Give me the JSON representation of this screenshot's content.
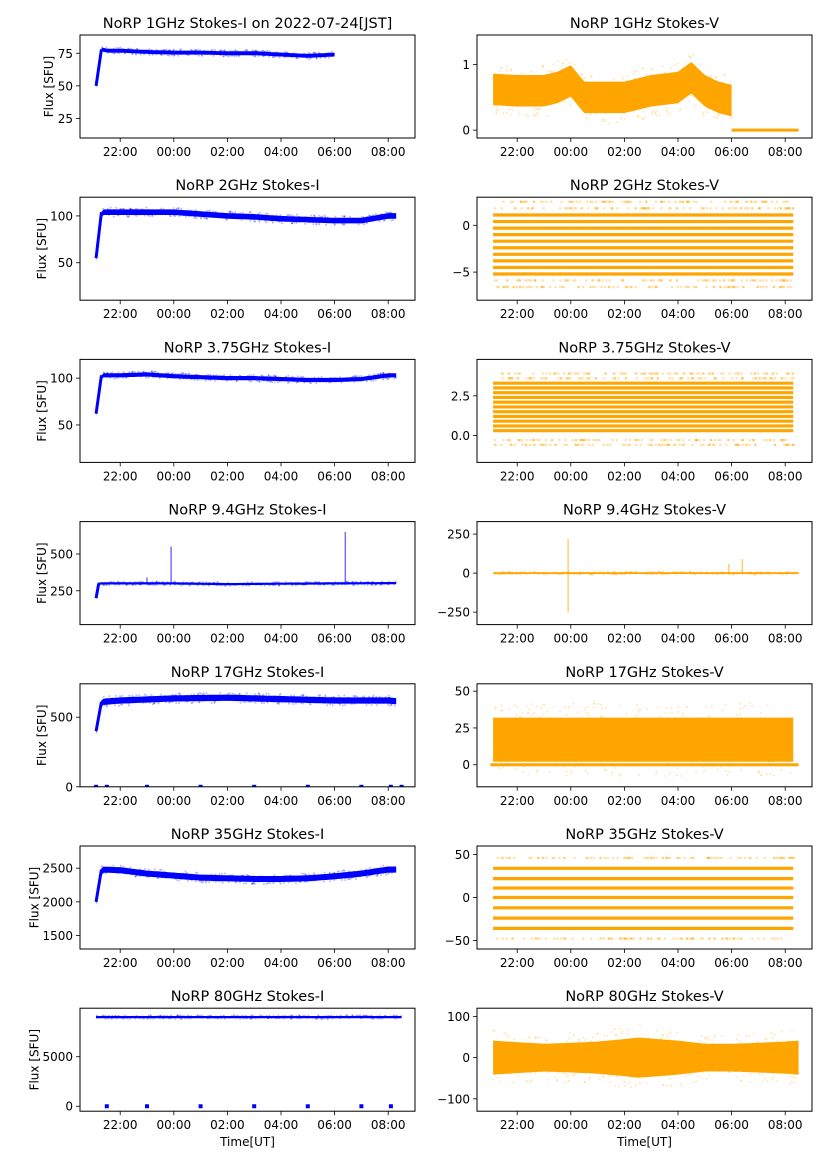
{
  "figure": {
    "colors": {
      "stokes_i": "#0000ff",
      "stokes_v": "#ffa500",
      "axes": "#000000"
    }
  },
  "chart_data": [
    {
      "type": "scatter",
      "title": "NoRP 1GHz Stokes-I on 2022-07-24[JST]",
      "xlabel": "",
      "ylabel": "Flux [SFU]",
      "xlim": [
        20.5,
        33.0
      ],
      "ylim": [
        10,
        89
      ],
      "yticks": [
        25,
        50,
        75
      ],
      "ytick_labels": [
        "25",
        "50",
        "75"
      ],
      "xticks": [
        22,
        24,
        26,
        28,
        30,
        32
      ],
      "xtick_labels": [
        "22:00",
        "00:00",
        "02:00",
        "04:00",
        "06:00",
        "08:00"
      ],
      "series": [
        {
          "name": "Stokes-I",
          "color": "#0000ff",
          "x": [
            21.1,
            21.3,
            21.5,
            22,
            23,
            24,
            25,
            26,
            27,
            28,
            29,
            30
          ],
          "y": [
            50,
            78,
            77,
            77,
            76,
            75.5,
            75.5,
            75,
            75,
            74,
            73,
            74
          ],
          "spread": 2
        }
      ]
    },
    {
      "type": "scatter",
      "title": "NoRP 1GHz Stokes-V",
      "xlabel": "",
      "ylabel": "",
      "xlim": [
        20.5,
        33.0
      ],
      "ylim": [
        -0.12,
        1.45
      ],
      "yticks": [
        0,
        1
      ],
      "ytick_labels": [
        "0",
        "1"
      ],
      "xticks": [
        22,
        24,
        26,
        28,
        30,
        32
      ],
      "xtick_labels": [
        "22:00",
        "00:00",
        "02:00",
        "04:00",
        "06:00",
        "08:00"
      ],
      "series": [
        {
          "name": "Stokes-V",
          "color": "#ffa500",
          "x": [
            21.1,
            22,
            23,
            23.5,
            24,
            24.5,
            25,
            26,
            27,
            28,
            28.5,
            29,
            29.5,
            30
          ],
          "y": [
            0.62,
            0.6,
            0.6,
            0.65,
            0.75,
            0.5,
            0.5,
            0.5,
            0.6,
            0.65,
            0.8,
            0.6,
            0.5,
            0.45
          ],
          "spread": 0.32,
          "zero_x": [
            30.0,
            32.5
          ]
        }
      ]
    },
    {
      "type": "scatter",
      "title": "NoRP 2GHz Stokes-I",
      "xlabel": "",
      "ylabel": "Flux [SFU]",
      "xlim": [
        20.5,
        33.0
      ],
      "ylim": [
        10,
        120
      ],
      "yticks": [
        50,
        100
      ],
      "ytick_labels": [
        "50",
        "100"
      ],
      "xticks": [
        22,
        24,
        26,
        28,
        30,
        32
      ],
      "xtick_labels": [
        "22:00",
        "00:00",
        "02:00",
        "04:00",
        "06:00",
        "08:00"
      ],
      "series": [
        {
          "name": "Stokes-I",
          "color": "#0000ff",
          "x": [
            21.1,
            21.3,
            22,
            23,
            24,
            25,
            26,
            27,
            28,
            29,
            30,
            31,
            32,
            32.3
          ],
          "y": [
            55,
            104,
            104,
            104,
            104,
            102,
            100,
            99,
            97,
            96,
            95,
            95,
            100,
            100
          ],
          "spread": 4
        }
      ]
    },
    {
      "type": "scatter",
      "title": "NoRP 2GHz Stokes-V",
      "xlabel": "",
      "ylabel": "",
      "xlim": [
        20.5,
        33.0
      ],
      "ylim": [
        -8,
        3
      ],
      "yticks": [
        -5,
        0
      ],
      "ytick_labels": [
        "−5",
        "0"
      ],
      "xticks": [
        22,
        24,
        26,
        28,
        30,
        32
      ],
      "xtick_labels": [
        "22:00",
        "00:00",
        "02:00",
        "04:00",
        "06:00",
        "08:00"
      ],
      "series": [
        {
          "name": "Stokes-V",
          "color": "#ffa500",
          "levels": [
            -5.2,
            -4.5,
            -3.8,
            -3.1,
            -2.4,
            -1.7,
            -1.0,
            -0.3,
            0.4,
            1.1
          ],
          "faint_levels": [
            -6.6,
            -5.9,
            1.8,
            2.5
          ],
          "x_range": [
            21.1,
            32.3
          ]
        }
      ]
    },
    {
      "type": "scatter",
      "title": "NoRP 3.75GHz Stokes-I",
      "xlabel": "",
      "ylabel": "Flux [SFU]",
      "xlim": [
        20.5,
        33.0
      ],
      "ylim": [
        10,
        120
      ],
      "yticks": [
        50,
        100
      ],
      "ytick_labels": [
        "50",
        "100"
      ],
      "xticks": [
        22,
        24,
        26,
        28,
        30,
        32
      ],
      "xtick_labels": [
        "22:00",
        "00:00",
        "02:00",
        "04:00",
        "06:00",
        "08:00"
      ],
      "series": [
        {
          "name": "Stokes-I",
          "color": "#0000ff",
          "x": [
            21.1,
            21.3,
            22,
            23,
            24,
            25,
            26,
            27,
            28,
            29,
            30,
            31,
            32,
            32.3
          ],
          "y": [
            62,
            103,
            103,
            104,
            102,
            101,
            100,
            100,
            99,
            98,
            98,
            99,
            103,
            103
          ],
          "spread": 3
        }
      ]
    },
    {
      "type": "scatter",
      "title": "NoRP 3.75GHz Stokes-V",
      "xlabel": "",
      "ylabel": "",
      "xlim": [
        20.5,
        33.0
      ],
      "ylim": [
        -1.7,
        4.8
      ],
      "yticks": [
        0.0,
        2.5
      ],
      "ytick_labels": [
        "0.0",
        "2.5"
      ],
      "xticks": [
        22,
        24,
        26,
        28,
        30,
        32
      ],
      "xtick_labels": [
        "22:00",
        "00:00",
        "02:00",
        "04:00",
        "06:00",
        "08:00"
      ],
      "series": [
        {
          "name": "Stokes-V",
          "color": "#ffa500",
          "levels": [
            0.3,
            0.6,
            0.9,
            1.2,
            1.5,
            1.8,
            2.1,
            2.4,
            2.7,
            3.0,
            3.3
          ],
          "faint_levels": [
            -0.3,
            -0.6,
            3.6,
            3.9
          ],
          "x_range": [
            21.1,
            32.3
          ]
        }
      ]
    },
    {
      "type": "scatter",
      "title": "NoRP 9.4GHz Stokes-I",
      "xlabel": "",
      "ylabel": "Flux [SFU]",
      "xlim": [
        20.5,
        33.0
      ],
      "ylim": [
        20,
        720
      ],
      "yticks": [
        250,
        500
      ],
      "ytick_labels": [
        "250",
        "500"
      ],
      "xticks": [
        22,
        24,
        26,
        28,
        30,
        32
      ],
      "xtick_labels": [
        "22:00",
        "00:00",
        "02:00",
        "04:00",
        "06:00",
        "08:00"
      ],
      "series": [
        {
          "name": "Stokes-I",
          "color": "#0000ff",
          "x": [
            21.1,
            21.2,
            22,
            24,
            26,
            28,
            30,
            32,
            32.3
          ],
          "y": [
            200,
            300,
            300,
            300,
            295,
            298,
            300,
            302,
            302
          ],
          "spread": 10,
          "spikes": [
            [
              23.9,
              550
            ],
            [
              30.4,
              650
            ],
            [
              23.0,
              340
            ]
          ]
        }
      ]
    },
    {
      "type": "scatter",
      "title": "NoRP 9.4GHz Stokes-V",
      "xlabel": "",
      "ylabel": "",
      "xlim": [
        20.5,
        33.0
      ],
      "ylim": [
        -330,
        330
      ],
      "yticks": [
        -250,
        0,
        250
      ],
      "ytick_labels": [
        "−250",
        "0",
        "250"
      ],
      "xticks": [
        22,
        24,
        26,
        28,
        30,
        32
      ],
      "xtick_labels": [
        "22:00",
        "00:00",
        "02:00",
        "04:00",
        "06:00",
        "08:00"
      ],
      "series": [
        {
          "name": "Stokes-V",
          "color": "#ffa500",
          "x": [
            21.1,
            32.5
          ],
          "y": [
            0,
            0
          ],
          "spread": 8,
          "spikes": [
            [
              23.9,
              220
            ],
            [
              23.9,
              -250
            ],
            [
              29.9,
              60
            ],
            [
              30.4,
              90
            ]
          ]
        }
      ]
    },
    {
      "type": "scatter",
      "title": "NoRP 17GHz Stokes-I",
      "xlabel": "",
      "ylabel": "Flux [SFU]",
      "xlim": [
        20.5,
        33.0
      ],
      "ylim": [
        0,
        740
      ],
      "yticks": [
        0,
        500
      ],
      "ytick_labels": [
        "0",
        "500"
      ],
      "xticks": [
        22,
        24,
        26,
        28,
        30,
        32
      ],
      "xtick_labels": [
        "22:00",
        "00:00",
        "02:00",
        "04:00",
        "06:00",
        "08:00"
      ],
      "series": [
        {
          "name": "Stokes-I",
          "color": "#0000ff",
          "x": [
            21.1,
            21.3,
            22,
            24,
            26,
            28,
            30,
            32,
            32.3
          ],
          "y": [
            400,
            610,
            620,
            635,
            640,
            630,
            620,
            620,
            615
          ],
          "spread": 30,
          "zero_dots": [
            21.1,
            21.5,
            23.0,
            25.0,
            27.0,
            29.0,
            31.0,
            32.1,
            32.5
          ]
        }
      ]
    },
    {
      "type": "scatter",
      "title": "NoRP 17GHz Stokes-V",
      "xlabel": "",
      "ylabel": "",
      "xlim": [
        20.5,
        33.0
      ],
      "ylim": [
        -15,
        55
      ],
      "yticks": [
        0,
        25,
        50
      ],
      "ytick_labels": [
        "0",
        "25",
        "50"
      ],
      "xticks": [
        22,
        24,
        26,
        28,
        30,
        32
      ],
      "xtick_labels": [
        "22:00",
        "00:00",
        "02:00",
        "04:00",
        "06:00",
        "08:00"
      ],
      "series": [
        {
          "name": "Stokes-V",
          "color": "#ffa500",
          "x": [
            21.1,
            32.3
          ],
          "y": [
            17,
            17
          ],
          "spread": 20,
          "zero_x": [
            21.0,
            32.5
          ]
        }
      ]
    },
    {
      "type": "scatter",
      "title": "NoRP 35GHz Stokes-I",
      "xlabel": "",
      "ylabel": "Flux [SFU]",
      "xlim": [
        20.5,
        33.0
      ],
      "ylim": [
        1300,
        2830
      ],
      "yticks": [
        1500,
        2000,
        2500
      ],
      "ytick_labels": [
        "1500",
        "2000",
        "2500"
      ],
      "xticks": [
        22,
        24,
        26,
        28,
        30,
        32
      ],
      "xtick_labels": [
        "22:00",
        "00:00",
        "02:00",
        "04:00",
        "06:00",
        "08:00"
      ],
      "series": [
        {
          "name": "Stokes-I",
          "color": "#0000ff",
          "x": [
            21.1,
            21.3,
            22,
            23,
            24,
            25,
            26,
            27,
            28,
            29,
            30,
            31,
            32,
            32.3
          ],
          "y": [
            2000,
            2480,
            2470,
            2420,
            2390,
            2360,
            2350,
            2340,
            2340,
            2350,
            2380,
            2420,
            2480,
            2480
          ],
          "spread": 60
        }
      ]
    },
    {
      "type": "scatter",
      "title": "NoRP 35GHz Stokes-V",
      "xlabel": "",
      "ylabel": "",
      "xlim": [
        20.5,
        33.0
      ],
      "ylim": [
        -60,
        60
      ],
      "yticks": [
        -50,
        0,
        50
      ],
      "ytick_labels": [
        "−50",
        "0",
        "50"
      ],
      "xticks": [
        22,
        24,
        26,
        28,
        30,
        32
      ],
      "xtick_labels": [
        "22:00",
        "00:00",
        "02:00",
        "04:00",
        "06:00",
        "08:00"
      ],
      "series": [
        {
          "name": "Stokes-V",
          "color": "#ffa500",
          "levels": [
            -36,
            -24,
            -12,
            0,
            11,
            22,
            34
          ],
          "faint_levels": [
            -48,
            46
          ],
          "x_range": [
            21.1,
            32.3
          ]
        }
      ]
    },
    {
      "type": "scatter",
      "title": "NoRP 80GHz Stokes-I",
      "xlabel": "Time[UT]",
      "ylabel": "Flux [SFU]",
      "xlim": [
        20.5,
        33.0
      ],
      "ylim": [
        -500,
        9900
      ],
      "yticks": [
        0,
        5000
      ],
      "ytick_labels": [
        "0",
        "5000"
      ],
      "xticks": [
        22,
        24,
        26,
        28,
        30,
        32
      ],
      "xtick_labels": [
        "22:00",
        "00:00",
        "02:00",
        "04:00",
        "06:00",
        "08:00"
      ],
      "series": [
        {
          "name": "Stokes-I",
          "color": "#0000ff",
          "x": [
            21.1,
            32.5
          ],
          "y": [
            9000,
            9000
          ],
          "spread": 150,
          "zero_dots": [
            21.5,
            23.0,
            25.0,
            27.0,
            29.0,
            31.0,
            32.1
          ]
        }
      ]
    },
    {
      "type": "scatter",
      "title": "NoRP 80GHz Stokes-V",
      "xlabel": "Time[UT]",
      "ylabel": "",
      "xlim": [
        20.5,
        33.0
      ],
      "ylim": [
        -130,
        120
      ],
      "yticks": [
        -100,
        0,
        100
      ],
      "ytick_labels": [
        "−100",
        "0",
        "100"
      ],
      "xticks": [
        22,
        24,
        26,
        28,
        30,
        32
      ],
      "xtick_labels": [
        "22:00",
        "00:00",
        "02:00",
        "04:00",
        "06:00",
        "08:00"
      ],
      "series": [
        {
          "name": "Stokes-V",
          "color": "#ffa500",
          "x": [
            21.1,
            22,
            23,
            24,
            25,
            26,
            26.5,
            27,
            28,
            29,
            30,
            31,
            32,
            32.5
          ],
          "y": [
            0,
            0,
            0,
            0,
            0,
            0,
            0,
            0,
            0,
            0,
            0,
            0,
            0,
            0
          ],
          "spread_curve": [
            55,
            50,
            45,
            48,
            52,
            60,
            65,
            62,
            55,
            45,
            45,
            48,
            52,
            55
          ]
        }
      ]
    }
  ]
}
